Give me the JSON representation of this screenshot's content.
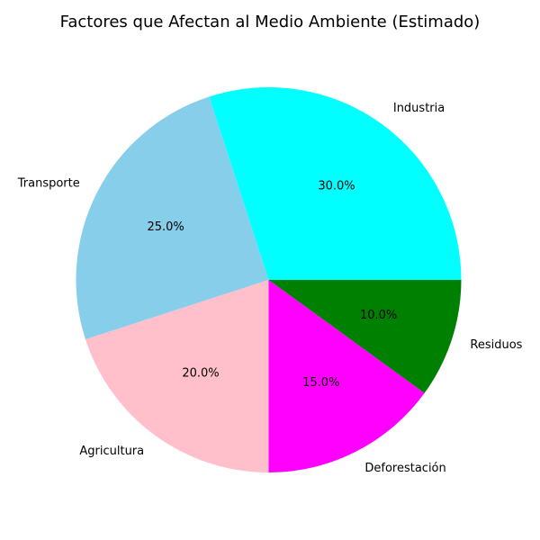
{
  "chart_data": {
    "type": "pie",
    "title": "Factores que Afectan al Medio Ambiente (Estimado)",
    "start_angle_deg": 0,
    "direction": "counterclockwise",
    "slices": [
      {
        "label": "Industria",
        "value": 30.0,
        "pct_label": "30.0%",
        "color": "#00ffff"
      },
      {
        "label": "Transporte",
        "value": 25.0,
        "pct_label": "25.0%",
        "color": "#87ceeb"
      },
      {
        "label": "Agricultura",
        "value": 20.0,
        "pct_label": "20.0%",
        "color": "#ffc0cb"
      },
      {
        "label": "Deforestación",
        "value": 15.0,
        "pct_label": "15.0%",
        "color": "#ff00ff"
      },
      {
        "label": "Residuos",
        "value": 10.0,
        "pct_label": "10.0%",
        "color": "#008000"
      }
    ]
  }
}
